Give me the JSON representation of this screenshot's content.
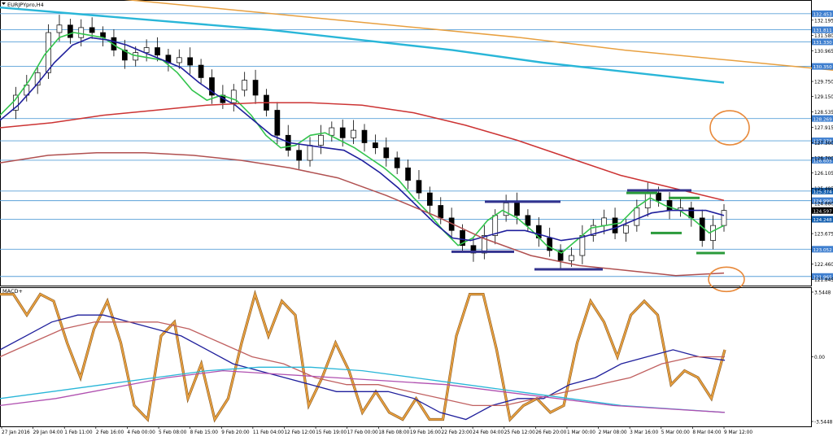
{
  "chart_data": [
    {
      "type": "candlestick",
      "panel": "price",
      "title": "EURJPYpro,H4",
      "ylim": [
        121.6,
        133.0
      ],
      "y_ticks": [
        "132.195",
        "131.580",
        "130.965",
        "130.350",
        "129.750",
        "129.150",
        "128.535",
        "127.915",
        "127.300",
        "126.700",
        "126.105",
        "125.485",
        "124.880",
        "124.597",
        "123.675",
        "122.460",
        "121.845"
      ],
      "level_labels": [
        "132.453",
        "131.811",
        "131.330",
        "130.350",
        "128.269",
        "127.378",
        "126.605",
        "125.374",
        "124.990",
        "124.597",
        "124.248",
        "123.052",
        "121.965"
      ],
      "x_ticks": [
        "27 Jan 2016",
        "29 Jan 04:00",
        "1 Feb 11:00",
        "2 Feb 16:00",
        "4 Feb 00:00",
        "5 Feb 08:00",
        "8 Feb 15:00",
        "9 Feb 20:00",
        "11 Feb 04:00",
        "12 Feb 12:00",
        "15 Feb 19:00",
        "17 Feb 00:00",
        "18 Feb 08:00",
        "19 Feb 16:00",
        "22 Feb 23:00",
        "24 Feb 04:00",
        "25 Feb 12:00",
        "26 Feb 20:00",
        "1 Mar 00:00",
        "2 Mar 08:00",
        "3 Mar 16:00",
        "5 Mar 00:00",
        "8 Mar 04:00",
        "9 Mar 12:00"
      ],
      "ohlc_close_path": [
        128.6,
        129.2,
        129.6,
        130.1,
        131.7,
        132.0,
        131.5,
        131.9,
        131.7,
        131.5,
        131.0,
        130.6,
        130.9,
        131.1,
        130.8,
        130.5,
        130.7,
        130.4,
        129.9,
        129.2,
        128.9,
        129.4,
        129.8,
        129.2,
        128.6,
        127.6,
        127.0,
        126.6,
        127.2,
        127.6,
        127.9,
        127.5,
        127.8,
        127.3,
        127.1,
        126.7,
        126.3,
        125.8,
        125.3,
        124.8,
        124.3,
        123.8,
        123.2,
        122.9,
        123.6,
        124.4,
        124.9,
        124.4,
        124.0,
        123.5,
        123.0,
        122.6,
        122.8,
        123.6,
        124.0,
        124.3,
        123.7,
        124.0,
        124.7,
        125.3,
        125.0,
        124.6,
        124.7,
        124.3,
        123.4,
        124.0,
        124.6
      ],
      "moving_averages": [
        {
          "name": "",
          "color": "#33c44d",
          "values": [
            128.4,
            129.0,
            129.8,
            130.8,
            131.5,
            131.7,
            131.6,
            131.5,
            131.1,
            130.8,
            130.7,
            130.6,
            130.1,
            129.4,
            129.0,
            129.2,
            129.0,
            128.4,
            127.6,
            127.1,
            127.2,
            127.6,
            127.7,
            127.4,
            127.1,
            126.7,
            126.3,
            125.8,
            125.1,
            124.5,
            123.8,
            123.2,
            123.5,
            124.2,
            124.6,
            124.3,
            123.8,
            123.2,
            122.9,
            123.4,
            123.9,
            124.0,
            124.1,
            124.7,
            125.1,
            124.8,
            124.6,
            124.2,
            123.7,
            124.0
          ]
        },
        {
          "name": "",
          "color": "#1f1f9c",
          "values": [
            128.2,
            128.8,
            129.6,
            130.5,
            131.2,
            131.5,
            131.4,
            131.2,
            130.9,
            130.6,
            130.3,
            129.7,
            129.2,
            128.8,
            128.2,
            127.6,
            127.3,
            127.2,
            127.1,
            127.0,
            126.6,
            126.1,
            125.5,
            124.8,
            124.1,
            123.5,
            123.4,
            123.6,
            123.8,
            123.8,
            123.6,
            123.4,
            123.5,
            123.7,
            123.9,
            124.2,
            124.5,
            124.6,
            124.6,
            124.6,
            124.4
          ]
        },
        {
          "name": "",
          "color": "#cc3333",
          "values": [
            127.9,
            128.1,
            128.4,
            128.6,
            128.8,
            128.9,
            128.9,
            128.8,
            128.5,
            128.0,
            127.4,
            126.7,
            126.0,
            125.5,
            125.0
          ]
        },
        {
          "name": "",
          "color": "#29b6d8",
          "values": [
            132.7,
            132.4,
            132.1,
            131.8,
            131.4,
            131.0,
            130.5,
            130.1,
            129.7
          ]
        },
        {
          "name": "",
          "color": "#e8a040",
          "values": [
            133.4,
            133.1,
            132.7,
            132.3,
            131.9,
            131.5,
            131.0,
            130.6,
            130.2
          ]
        },
        {
          "name": "",
          "color": "#b05050",
          "values": [
            126.5,
            126.8,
            126.9,
            126.9,
            126.8,
            126.6,
            126.3,
            125.9,
            125.2,
            124.4,
            123.5,
            122.8,
            122.4,
            122.2,
            122.0,
            122.1
          ]
        }
      ],
      "support_resistance_segments": [
        {
          "color": "#33338f",
          "y": 124.95
        },
        {
          "color": "#33338f",
          "y": 122.95
        },
        {
          "color": "#33338f",
          "y": 122.25
        },
        {
          "color": "#33338f",
          "y": 125.4
        },
        {
          "color": "#2a9a3a",
          "y": 125.3
        },
        {
          "color": "#2a9a3a",
          "y": 125.1
        },
        {
          "color": "#2a9a3a",
          "y": 123.7
        },
        {
          "color": "#2a9a3a",
          "y": 122.9
        }
      ],
      "annotations": [
        "orange circle at 127.9",
        "orange circle at 121.85"
      ]
    },
    {
      "type": "line",
      "panel": "indicator",
      "title": "MACD+",
      "ylim": [
        -1.0,
        1.0
      ],
      "y_ticks": [
        "3.5448",
        "0.00",
        "-3.5448"
      ],
      "series": [
        {
          "name": "",
          "color": "#e8a040",
          "values": [
            0.9,
            0.9,
            0.6,
            0.9,
            0.8,
            0.2,
            -0.3,
            0.4,
            0.8,
            0.2,
            -0.7,
            -0.9,
            0.3,
            0.5,
            -0.6,
            -0.1,
            -0.9,
            -0.6,
            0.2,
            0.9,
            0.3,
            0.8,
            0.6,
            -0.7,
            -0.3,
            0.2,
            -0.2,
            -0.8,
            -0.5,
            -0.8,
            -0.9,
            -0.6,
            -0.9,
            -0.9,
            0.3,
            0.9,
            0.9,
            0.1,
            -0.9,
            -0.7,
            -0.6,
            -0.8,
            -0.7,
            0.2,
            0.8,
            0.5,
            0.0,
            0.6,
            0.8,
            0.6,
            -0.4,
            -0.2,
            -0.3,
            -0.6,
            0.1
          ]
        },
        {
          "name": "",
          "color": "#1f1f9c",
          "values": [
            0.1,
            0.3,
            0.5,
            0.6,
            0.6,
            0.5,
            0.4,
            0.3,
            0.1,
            -0.1,
            -0.2,
            -0.3,
            -0.4,
            -0.5,
            -0.5,
            -0.5,
            -0.6,
            -0.8,
            -0.9,
            -0.7,
            -0.6,
            -0.6,
            -0.4,
            -0.3,
            -0.1,
            0.0,
            0.1,
            0.0,
            -0.05
          ]
        },
        {
          "name": "",
          "color": "#c06060",
          "values": [
            0.0,
            0.2,
            0.4,
            0.5,
            0.5,
            0.5,
            0.4,
            0.2,
            0.0,
            -0.1,
            -0.3,
            -0.4,
            -0.4,
            -0.5,
            -0.6,
            -0.7,
            -0.7,
            -0.6,
            -0.5,
            -0.4,
            -0.3,
            -0.1,
            0.0,
            0.0
          ]
        },
        {
          "name": "",
          "color": "#29b6d8",
          "values": [
            -0.6,
            -0.5,
            -0.4,
            -0.3,
            -0.2,
            -0.15,
            -0.15,
            -0.2,
            -0.3,
            -0.4,
            -0.5,
            -0.6,
            -0.7,
            -0.75,
            -0.8
          ]
        },
        {
          "name": "",
          "color": "#b050b0",
          "values": [
            -0.7,
            -0.6,
            -0.45,
            -0.3,
            -0.2,
            -0.25,
            -0.3,
            -0.35,
            -0.4,
            -0.5,
            -0.6,
            -0.7,
            -0.75,
            -0.8
          ]
        }
      ],
      "annotations": []
    }
  ],
  "colors": {
    "background": "#ffffff",
    "level_line": "#5aa0d8",
    "axis_tag": "#3f7fcf",
    "current_price_tag": "#000000",
    "highlight_tag": "#1560b0"
  }
}
